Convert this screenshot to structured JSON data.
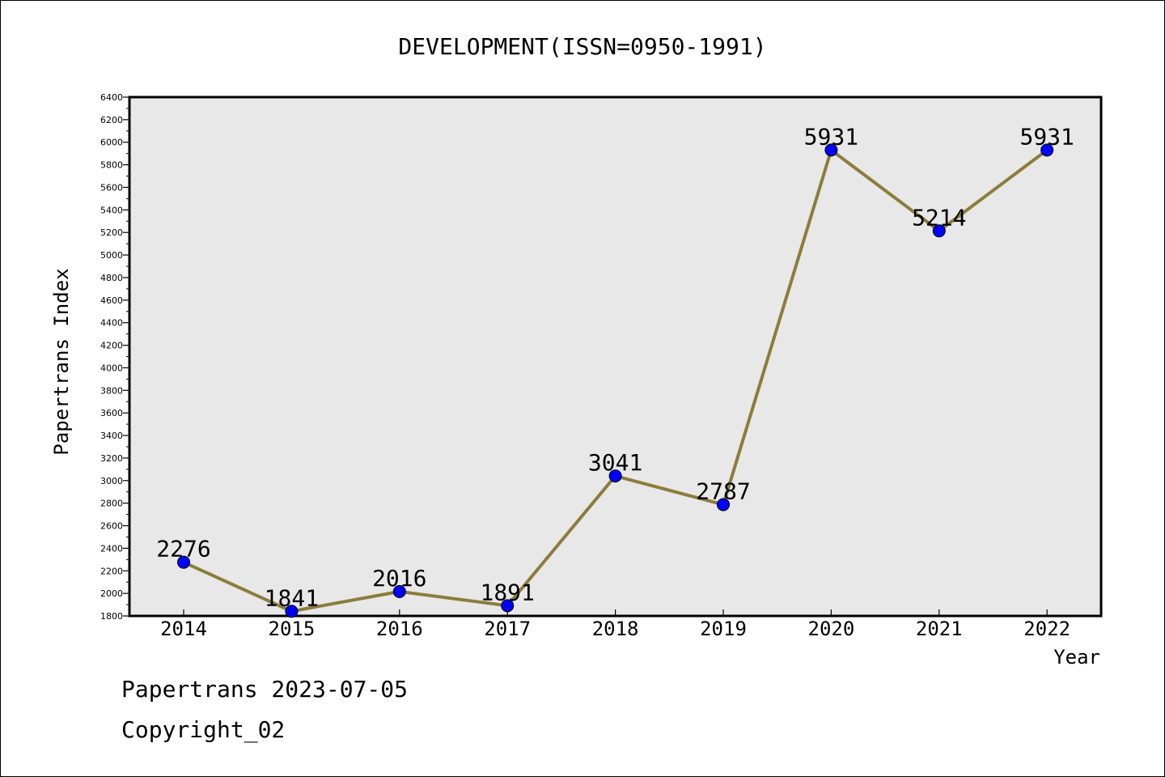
{
  "chart_data": {
    "type": "line",
    "title": "DEVELOPMENT(ISSN=0950-1991)",
    "xlabel": "Year",
    "ylabel": "Papertrans Index",
    "categories": [
      "2014",
      "2015",
      "2016",
      "2017",
      "2018",
      "2019",
      "2020",
      "2021",
      "2022"
    ],
    "series": [
      {
        "values": [
          2276,
          1841,
          2016,
          1891,
          3041,
          2787,
          5931,
          5214,
          5931
        ],
        "data_labels": [
          "2276",
          "1841",
          "2016",
          "1891",
          "3041",
          "2787",
          "5931",
          "5214",
          "5931"
        ]
      }
    ],
    "ylim": [
      1800,
      6400
    ],
    "yticks": [
      "1800",
      "2000",
      "2200",
      "2400",
      "2600",
      "2800",
      "3000",
      "3200",
      "3400",
      "3600",
      "3800",
      "4000",
      "4200",
      "4400",
      "4600",
      "4800",
      "5000",
      "5200",
      "5400",
      "5600",
      "5800",
      "6000",
      "6200",
      "6400"
    ],
    "grid": false,
    "colors": {
      "line": "#8B7D3A",
      "marker": "#0000FF",
      "plot_background": "#E8E8E8"
    }
  },
  "footer": {
    "source_label": "Papertrans 2023-07-05",
    "copyright_label": "Copyright_02"
  }
}
